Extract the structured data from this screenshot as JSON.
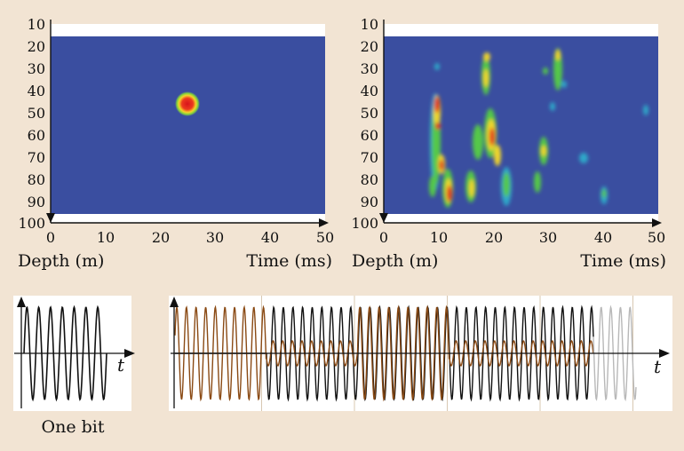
{
  "figure": {
    "colors": {
      "background": "#f2e4d3",
      "map_field": "#3a4ea0",
      "wave_black": "#111111",
      "wave_brown": "#8a4a14",
      "wave_faded": "#b8b8b8",
      "divider": "#d8c8b2"
    },
    "heatmaps": [
      {
        "y_ticks": [
          "10",
          "20",
          "30",
          "40",
          "50",
          "60",
          "70",
          "80",
          "90",
          "100"
        ],
        "x_ticks": [
          "0",
          "10",
          "20",
          "30",
          "40",
          "50"
        ],
        "x_label_left": "Depth (m)",
        "x_label_right": "Time (ms)"
      },
      {
        "y_ticks": [
          "10",
          "20",
          "30",
          "40",
          "50",
          "60",
          "70",
          "80",
          "90",
          "100"
        ],
        "x_ticks": [
          "0",
          "10",
          "20",
          "30",
          "40",
          "50"
        ],
        "x_label_left": "Depth (m)",
        "x_label_right": "Time (ms)"
      }
    ],
    "signals": {
      "axis_symbol": "t",
      "one_bit_caption": "One bit",
      "one_bit_cycles": 7,
      "train_segments": 5
    }
  }
}
